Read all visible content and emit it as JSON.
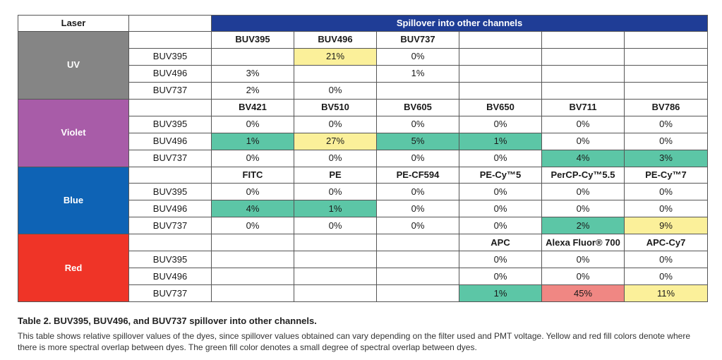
{
  "header": {
    "laser": "Laser",
    "spillover": "Spillover into other channels"
  },
  "colors": {
    "uv": "#858585",
    "violet": "#a85ca8",
    "blue": "#0e63b5",
    "red": "#ef3427",
    "banner": "#1f3d96",
    "yellow": "#fbf09a",
    "green": "#5cc6a6",
    "salmon": "#f08783"
  },
  "groups": [
    {
      "laser": "UV",
      "color": "#858585",
      "channels": [
        "BUV395",
        "BUV496",
        "BUV737",
        "",
        "",
        ""
      ],
      "rows": [
        {
          "dye": "BUV395",
          "cells": [
            {
              "v": "",
              "hl": ""
            },
            {
              "v": "21%",
              "hl": "yellow"
            },
            {
              "v": "0%",
              "hl": ""
            },
            {
              "v": "",
              "hl": ""
            },
            {
              "v": "",
              "hl": ""
            },
            {
              "v": "",
              "hl": ""
            }
          ]
        },
        {
          "dye": "BUV496",
          "cells": [
            {
              "v": "3%",
              "hl": ""
            },
            {
              "v": "",
              "hl": ""
            },
            {
              "v": "1%",
              "hl": ""
            },
            {
              "v": "",
              "hl": ""
            },
            {
              "v": "",
              "hl": ""
            },
            {
              "v": "",
              "hl": ""
            }
          ]
        },
        {
          "dye": "BUV737",
          "cells": [
            {
              "v": "2%",
              "hl": ""
            },
            {
              "v": "0%",
              "hl": ""
            },
            {
              "v": "",
              "hl": ""
            },
            {
              "v": "",
              "hl": ""
            },
            {
              "v": "",
              "hl": ""
            },
            {
              "v": "",
              "hl": ""
            }
          ]
        }
      ]
    },
    {
      "laser": "Violet",
      "color": "#a85ca8",
      "channels": [
        "BV421",
        "BV510",
        "BV605",
        "BV650",
        "BV711",
        "BV786"
      ],
      "rows": [
        {
          "dye": "BUV395",
          "cells": [
            {
              "v": "0%",
              "hl": ""
            },
            {
              "v": "0%",
              "hl": ""
            },
            {
              "v": "0%",
              "hl": ""
            },
            {
              "v": "0%",
              "hl": ""
            },
            {
              "v": "0%",
              "hl": ""
            },
            {
              "v": "0%",
              "hl": ""
            }
          ]
        },
        {
          "dye": "BUV496",
          "cells": [
            {
              "v": "1%",
              "hl": "green"
            },
            {
              "v": "27%",
              "hl": "yellow"
            },
            {
              "v": "5%",
              "hl": "green"
            },
            {
              "v": "1%",
              "hl": "green"
            },
            {
              "v": "0%",
              "hl": ""
            },
            {
              "v": "0%",
              "hl": ""
            }
          ]
        },
        {
          "dye": "BUV737",
          "cells": [
            {
              "v": "0%",
              "hl": ""
            },
            {
              "v": "0%",
              "hl": ""
            },
            {
              "v": "0%",
              "hl": ""
            },
            {
              "v": "0%",
              "hl": ""
            },
            {
              "v": "4%",
              "hl": "green"
            },
            {
              "v": "3%",
              "hl": "green"
            }
          ]
        }
      ]
    },
    {
      "laser": "Blue",
      "color": "#0e63b5",
      "channels": [
        "FITC",
        "PE",
        "PE-CF594",
        "PE-Cy™5",
        "PerCP-Cy™5.5",
        "PE-Cy™7"
      ],
      "rows": [
        {
          "dye": "BUV395",
          "cells": [
            {
              "v": "0%",
              "hl": ""
            },
            {
              "v": "0%",
              "hl": ""
            },
            {
              "v": "0%",
              "hl": ""
            },
            {
              "v": "0%",
              "hl": ""
            },
            {
              "v": "0%",
              "hl": ""
            },
            {
              "v": "0%",
              "hl": ""
            }
          ]
        },
        {
          "dye": "BUV496",
          "cells": [
            {
              "v": "4%",
              "hl": "green"
            },
            {
              "v": "1%",
              "hl": "green"
            },
            {
              "v": "0%",
              "hl": ""
            },
            {
              "v": "0%",
              "hl": ""
            },
            {
              "v": "0%",
              "hl": ""
            },
            {
              "v": "0%",
              "hl": ""
            }
          ]
        },
        {
          "dye": "BUV737",
          "cells": [
            {
              "v": "0%",
              "hl": ""
            },
            {
              "v": "0%",
              "hl": ""
            },
            {
              "v": "0%",
              "hl": ""
            },
            {
              "v": "0%",
              "hl": ""
            },
            {
              "v": "2%",
              "hl": "green"
            },
            {
              "v": "9%",
              "hl": "yellow"
            }
          ]
        }
      ]
    },
    {
      "laser": "Red",
      "color": "#ef3427",
      "channels": [
        "",
        "",
        "",
        "APC",
        "Alexa Fluor® 700",
        "APC-Cy7"
      ],
      "rows": [
        {
          "dye": "BUV395",
          "cells": [
            {
              "v": "",
              "hl": ""
            },
            {
              "v": "",
              "hl": ""
            },
            {
              "v": "",
              "hl": ""
            },
            {
              "v": "0%",
              "hl": ""
            },
            {
              "v": "0%",
              "hl": ""
            },
            {
              "v": "0%",
              "hl": ""
            }
          ]
        },
        {
          "dye": "BUV496",
          "cells": [
            {
              "v": "",
              "hl": ""
            },
            {
              "v": "",
              "hl": ""
            },
            {
              "v": "",
              "hl": ""
            },
            {
              "v": "0%",
              "hl": ""
            },
            {
              "v": "0%",
              "hl": ""
            },
            {
              "v": "0%",
              "hl": ""
            }
          ]
        },
        {
          "dye": "BUV737",
          "cells": [
            {
              "v": "",
              "hl": ""
            },
            {
              "v": "",
              "hl": ""
            },
            {
              "v": "",
              "hl": ""
            },
            {
              "v": "1%",
              "hl": "green"
            },
            {
              "v": "45%",
              "hl": "red"
            },
            {
              "v": "11%",
              "hl": "yellow"
            }
          ]
        }
      ]
    }
  ],
  "caption": {
    "title": "Table 2. BUV395, BUV496, and BUV737 spillover into other channels.",
    "body": "This table shows relative spillover values of the dyes, since spillover values obtained can vary depending on the filter used and PMT voltage. Yellow and red fill colors denote where there is more spectral overlap between dyes. The green fill color denotes a small degree of spectral overlap between dyes."
  }
}
